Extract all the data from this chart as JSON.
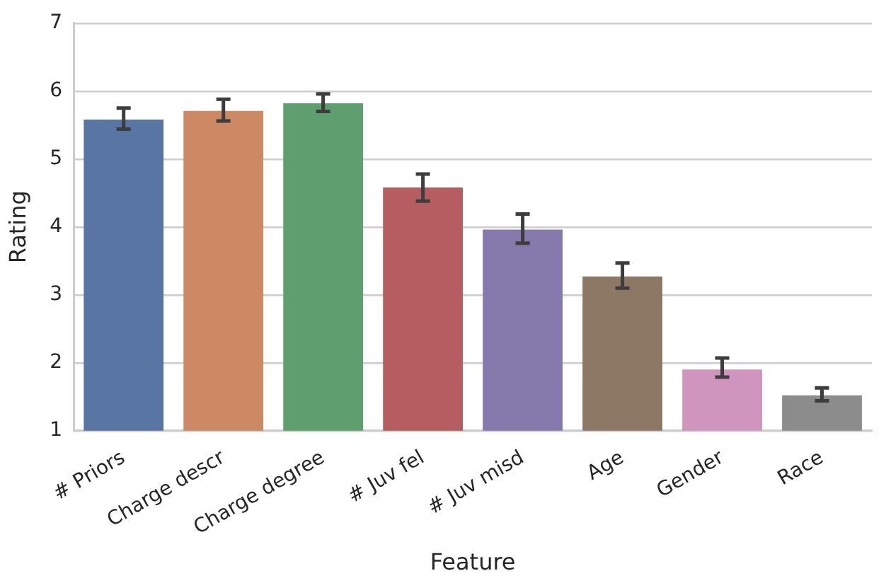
{
  "chart_data": {
    "type": "bar",
    "xlabel": "Feature",
    "ylabel": "Rating",
    "categories": [
      "# Priors",
      "Charge descr",
      "Charge degree",
      "# Juv fel",
      "# Juv misd",
      "Age",
      "Gender",
      "Race"
    ],
    "values": [
      5.58,
      5.71,
      5.82,
      4.58,
      3.96,
      3.27,
      1.9,
      1.52
    ],
    "errors": [
      [
        5.44,
        5.75
      ],
      [
        5.56,
        5.88
      ],
      [
        5.7,
        5.96
      ],
      [
        4.38,
        4.78
      ],
      [
        3.76,
        4.19
      ],
      [
        3.1,
        3.47
      ],
      [
        1.79,
        2.07
      ],
      [
        1.44,
        1.63
      ]
    ],
    "colors": [
      "#5975a4",
      "#cc8963",
      "#5f9e6e",
      "#b55d60",
      "#857aab",
      "#8d7866",
      "#d095bf",
      "#8c8c8c"
    ],
    "ylim": [
      1,
      7
    ],
    "yticks": [
      1,
      2,
      3,
      4,
      5,
      6,
      7
    ],
    "grid": "y",
    "legend": false
  }
}
